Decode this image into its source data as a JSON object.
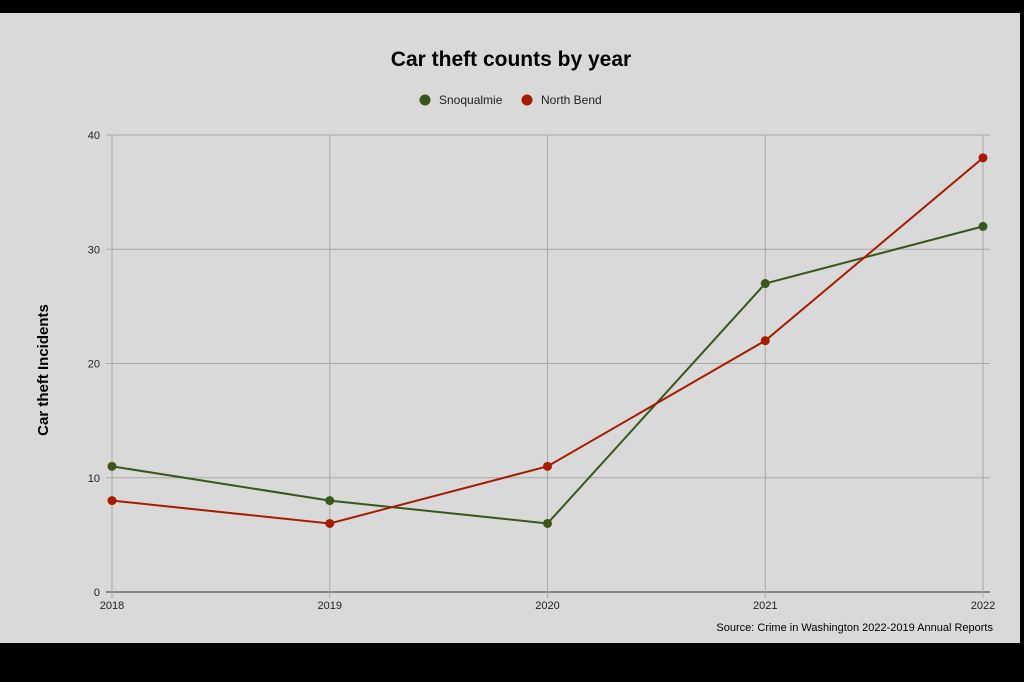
{
  "chart_data": {
    "type": "line",
    "title": "Car theft counts by year",
    "ylabel": "Car theft Incidents",
    "xlabel": "",
    "categories": [
      "2018",
      "2019",
      "2020",
      "2021",
      "2022"
    ],
    "series": [
      {
        "name": "Snoqualmie",
        "values": [
          11,
          8,
          6,
          27,
          32
        ],
        "color": "#38571a"
      },
      {
        "name": "North Bend",
        "values": [
          8,
          6,
          11,
          22,
          38
        ],
        "color": "#a61c00"
      }
    ],
    "ylim": [
      0,
      40
    ],
    "yticks": [
      0,
      10,
      20,
      30,
      40
    ],
    "grid": true,
    "legend": "top-center",
    "source": "Source: Crime in Washington 2022-2019 Annual Reports"
  }
}
